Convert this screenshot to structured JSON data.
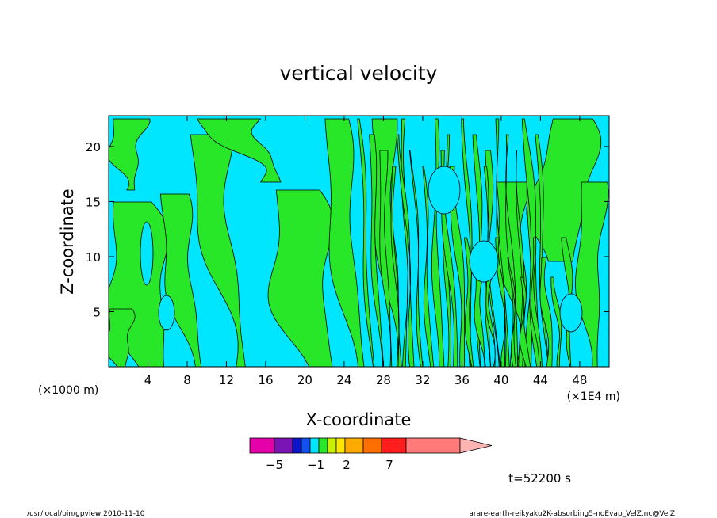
{
  "chart_data": {
    "type": "heatmap",
    "title": "vertical velocity",
    "xlabel": "X-coordinate",
    "ylabel": "Z-coordinate",
    "x_tick_labels": [
      "4",
      "8",
      "12",
      "16",
      "20",
      "24",
      "28",
      "32",
      "36",
      "40",
      "44",
      "48"
    ],
    "x_ticks": [
      4,
      8,
      12,
      16,
      20,
      24,
      28,
      32,
      36,
      40,
      44,
      48
    ],
    "y_tick_labels": [
      "5",
      "10",
      "15",
      "20"
    ],
    "y_ticks": [
      5,
      10,
      15,
      20
    ],
    "xlim": [
      0,
      51
    ],
    "ylim": [
      0,
      22.8
    ],
    "x_unit_left": "(×1000 m)",
    "x_unit_right": "(×1E4 m)",
    "time_label": "t=52200 s",
    "colorbar": {
      "colors": [
        "#e600aa",
        "#7a14b4",
        "#0a14c8",
        "#1450f0",
        "#00e6ff",
        "#28e628",
        "#c8f000",
        "#ffe600",
        "#ffaa00",
        "#ff6e00",
        "#ff1e1e",
        "#ff7a78",
        "#ffb4b4"
      ],
      "tick_labels": [
        "−5",
        "−1",
        "2",
        "7"
      ],
      "tick_values": [
        -5,
        -1,
        2,
        7
      ]
    },
    "field_colors": {
      "negative": "#00e6ff",
      "positive": "#28e628",
      "contour": "#000000"
    }
  },
  "footer": {
    "left": "/usr/local/bin/gpview  2010-11-10",
    "right": "arare-earth-reikyaku2K-absorbing5-noEvap_VelZ.nc@VelZ"
  }
}
